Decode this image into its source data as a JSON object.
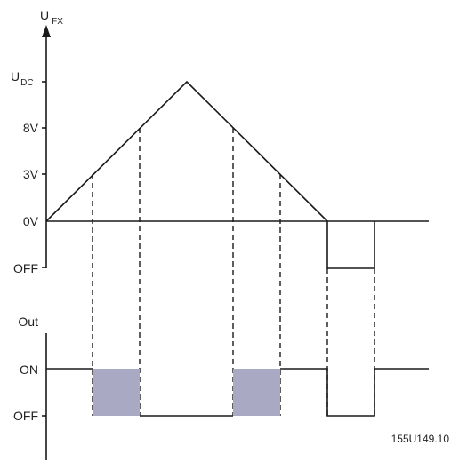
{
  "top_axis": {
    "title_main": "U",
    "title_sub": "FX",
    "ticks": {
      "udc_main": "U",
      "udc_sub": "DC",
      "v8": "8V",
      "v3": "3V",
      "v0": "0V",
      "off": "OFF"
    }
  },
  "bottom_axis": {
    "title": "Out",
    "ticks": {
      "on": "ON",
      "off": "OFF"
    }
  },
  "figure_ref": "155U149.10",
  "colors": {
    "line": "#1a1a1a",
    "on_fill": "#a9a9c4"
  }
}
